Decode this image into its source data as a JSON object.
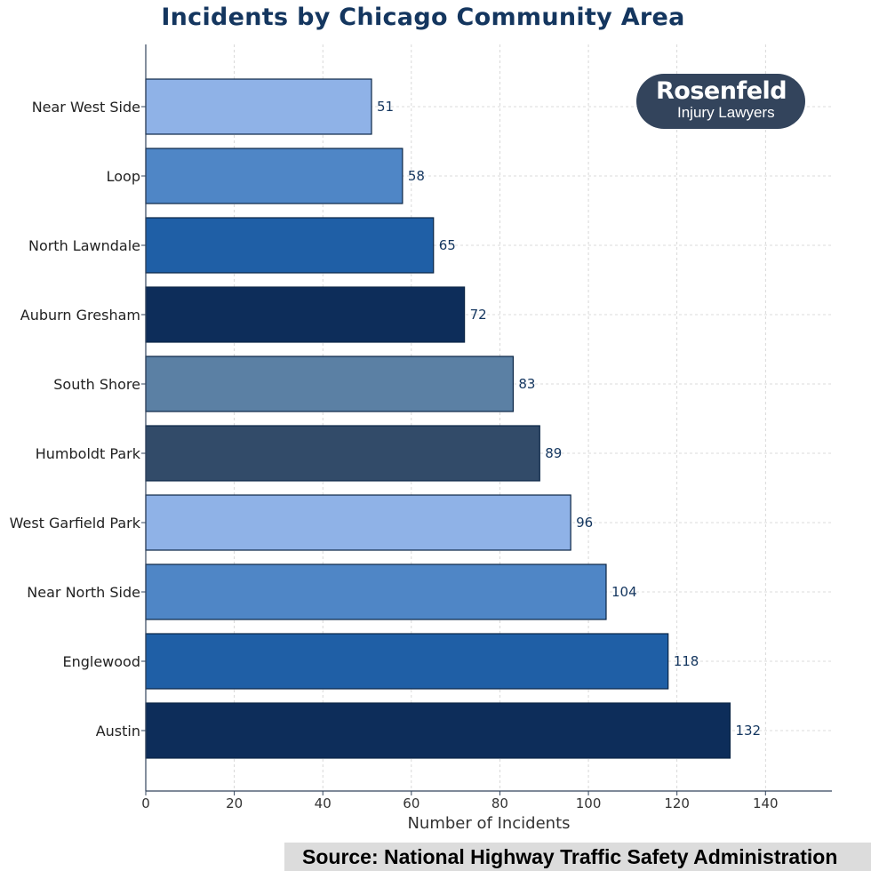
{
  "chart_data": {
    "type": "bar",
    "orientation": "horizontal",
    "title": "Incidents by Chicago Community Area",
    "xlabel": "Number of Incidents",
    "ylabel": "",
    "xlim": [
      0,
      155
    ],
    "xticks": [
      0,
      20,
      40,
      60,
      80,
      100,
      120,
      140
    ],
    "grid": true,
    "categories": [
      "Near West Side",
      "Loop",
      "North Lawndale",
      "Auburn Gresham",
      "South Shore",
      "Humboldt Park",
      "West Garfield Park",
      "Near North Side",
      "Englewood",
      "Austin"
    ],
    "values": [
      51,
      58,
      65,
      72,
      83,
      89,
      96,
      104,
      118,
      132
    ],
    "colors": [
      "#8fb2e7",
      "#4f86c6",
      "#1f5fa6",
      "#0d2d5a",
      "#5b80a4",
      "#324b69",
      "#8fb2e7",
      "#4f86c6",
      "#1f5fa6",
      "#0d2d5a"
    ],
    "annotations": [
      "Source: National Highway Traffic Safety Administration"
    ]
  },
  "logo": {
    "brand": "Rosenfeld",
    "tagline": "Injury Lawyers"
  },
  "source": "Source: National Highway Traffic Safety Administration",
  "colors": {
    "title": "#14365f",
    "value_label": "#14365f",
    "axis": "#33445c",
    "grid": "#cfcfcf",
    "logo_bg": "#33445c",
    "source_bg": "#dcdcdc"
  }
}
